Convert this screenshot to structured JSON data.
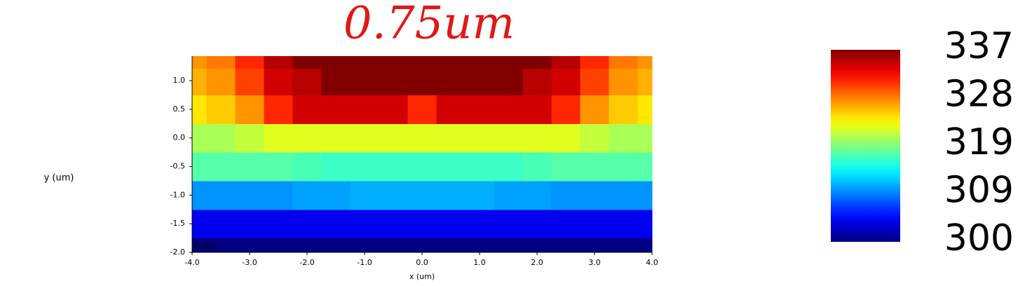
{
  "chart_data": {
    "type": "heatmap",
    "title": "0.75um",
    "x_label": "x (um)",
    "y_label": "y (um)",
    "corner_label": "(um)",
    "xlim": [
      -4,
      4
    ],
    "ylim": [
      -2,
      1.43
    ],
    "zlim": [
      300,
      337
    ],
    "xticks": [
      {
        "value": -4,
        "label": "-4.0"
      },
      {
        "value": -3,
        "label": "-3.0"
      },
      {
        "value": -2,
        "label": "-2.0"
      },
      {
        "value": -1,
        "label": "-1.0"
      },
      {
        "value": 0,
        "label": "0.0"
      },
      {
        "value": 1,
        "label": "1.0"
      },
      {
        "value": 2,
        "label": "2.0"
      },
      {
        "value": 3,
        "label": "3.0"
      },
      {
        "value": 4,
        "label": "4.0"
      }
    ],
    "yticks": [
      {
        "value": -2,
        "label": "-2.0"
      },
      {
        "value": -1.5,
        "label": "-1.5"
      },
      {
        "value": -1,
        "label": "-1.0"
      },
      {
        "value": -0.5,
        "label": "-0.5"
      },
      {
        "value": 0,
        "label": "0.0"
      },
      {
        "value": 0.5,
        "label": "0.5"
      },
      {
        "value": 1,
        "label": "1.0"
      }
    ],
    "colorbar_ticks": [
      {
        "value": 300,
        "label": "300"
      },
      {
        "value": 309.25,
        "label": "309"
      },
      {
        "value": 318.5,
        "label": "319"
      },
      {
        "value": 327.75,
        "label": "328"
      },
      {
        "value": 337,
        "label": "337"
      }
    ],
    "x": [
      -4,
      -3.5,
      -3,
      -2.5,
      -2,
      -1.5,
      -1,
      -0.5,
      0,
      0.5,
      1,
      1.5,
      2,
      2.5,
      3,
      3.5,
      4
    ],
    "y": [
      -2,
      -1.5,
      -1,
      -0.5,
      0,
      0.5,
      1,
      1.43
    ],
    "z": [
      [
        300,
        300,
        300,
        300,
        300,
        300,
        300,
        300,
        300,
        300,
        300,
        300,
        300,
        300,
        300,
        300,
        300
      ],
      [
        304,
        304,
        304,
        304,
        304,
        304,
        304,
        304,
        304,
        304,
        304,
        304,
        304,
        304,
        304,
        304,
        304
      ],
      [
        310,
        310,
        310,
        310,
        310.5,
        310.5,
        311,
        311,
        311,
        311,
        311,
        310.5,
        310.5,
        310,
        310,
        310,
        310
      ],
      [
        317,
        317,
        317,
        317,
        316.5,
        316,
        316,
        316,
        316,
        316,
        316,
        316,
        316.5,
        317,
        317,
        317,
        317
      ],
      [
        320,
        320,
        321,
        322,
        322,
        322,
        322,
        322,
        322,
        322,
        322,
        322,
        322,
        322,
        321,
        320,
        320
      ],
      [
        324,
        325,
        327,
        331,
        334,
        334,
        334,
        334,
        331,
        334,
        334,
        334,
        334,
        331,
        327,
        325,
        324
      ],
      [
        326,
        327,
        330,
        334,
        335,
        337,
        337,
        337,
        337,
        337,
        337,
        337,
        335,
        334,
        330,
        327,
        326
      ],
      [
        327,
        328,
        331,
        335,
        337,
        337,
        337,
        337,
        337,
        337,
        337,
        337,
        337,
        335,
        331,
        328,
        327
      ]
    ]
  }
}
